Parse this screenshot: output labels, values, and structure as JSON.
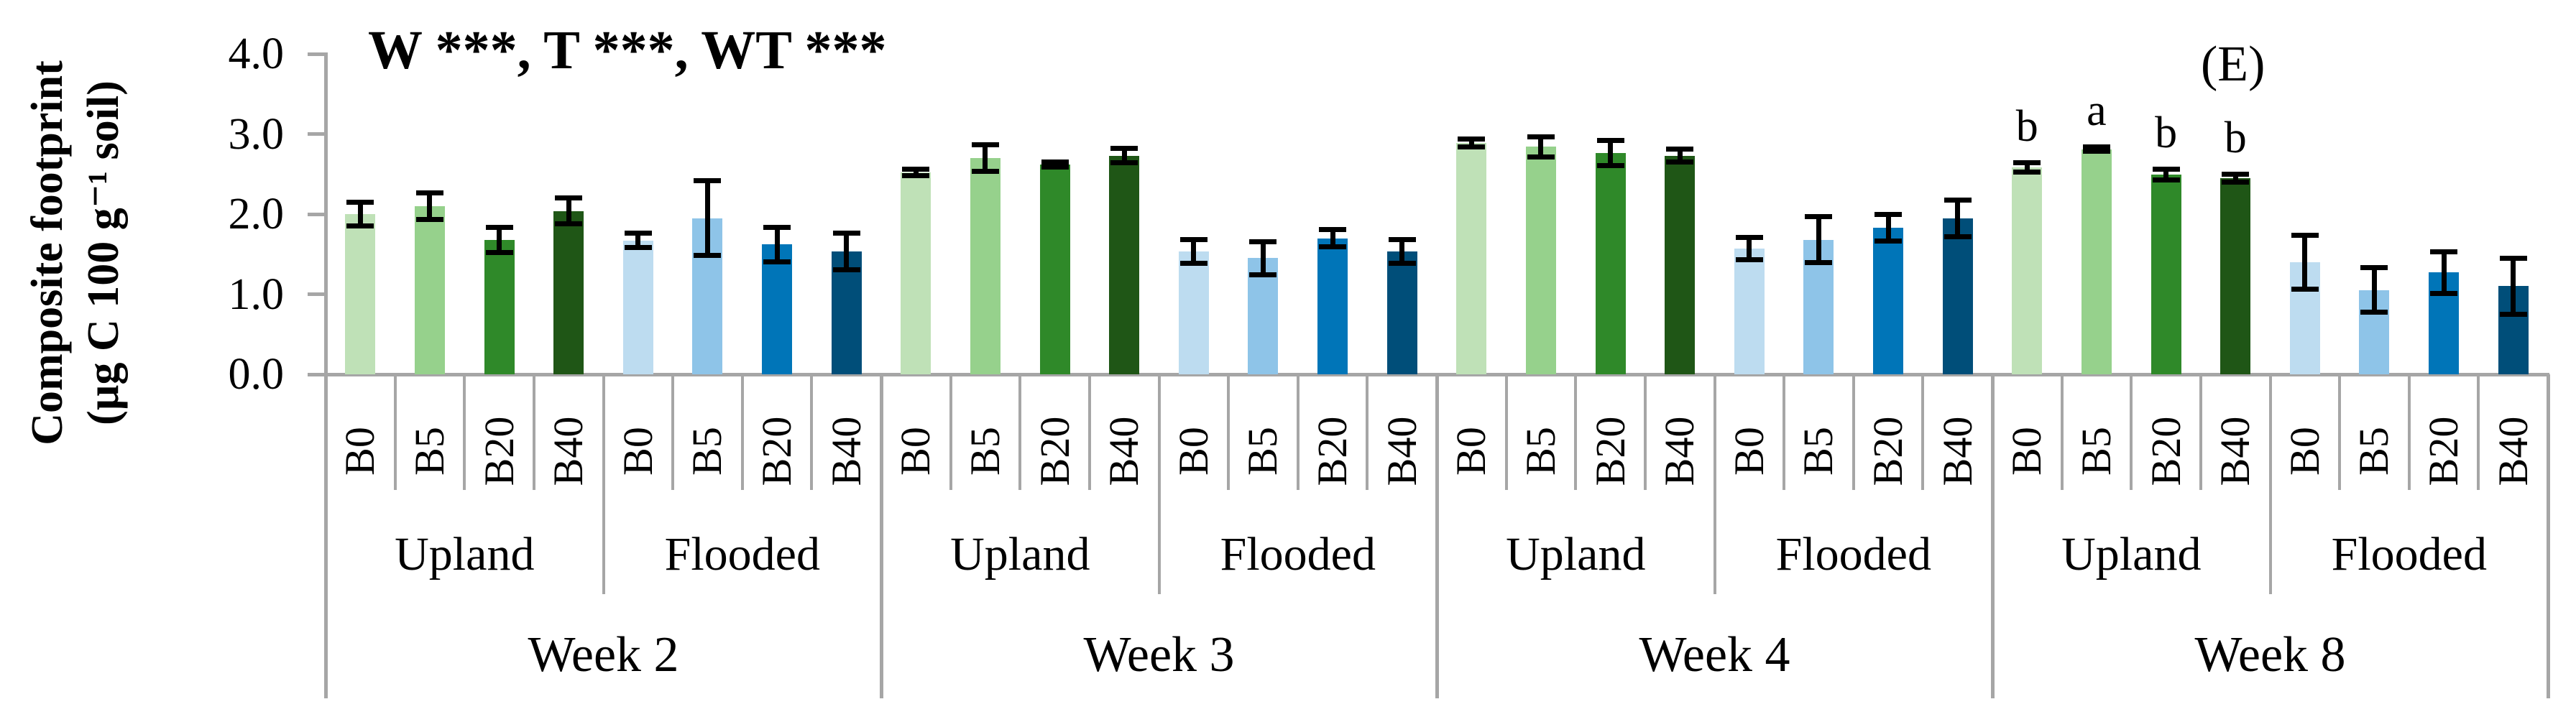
{
  "figure": {
    "title": "W ***, T ***, WT ***",
    "panel_label": "(E)",
    "y_axis_label_line1": "Composite footprint",
    "y_axis_label_line2": "(µg C 100 g⁻¹ soil)"
  },
  "chart_data": {
    "type": "bar",
    "title": "W ***, T ***, WT ***",
    "panel": "(E)",
    "ylabel": "Composite footprint (µg C 100 g⁻¹ soil)",
    "ylim": [
      0.0,
      4.0
    ],
    "yticks": [
      0.0,
      1.0,
      2.0,
      3.0,
      4.0
    ],
    "ytick_labels": [
      "0.0",
      "1.0",
      "2.0",
      "3.0",
      "4.0"
    ],
    "grid": false,
    "error_bars": true,
    "legend": "none",
    "treatments": [
      "B0",
      "B5",
      "B20",
      "B40"
    ],
    "water_regimes": [
      "Upland",
      "Flooded"
    ],
    "weeks": [
      "Week 2",
      "Week 3",
      "Week 4",
      "Week 8"
    ],
    "colors": {
      "Upland": [
        "#bfe1b7",
        "#96d18c",
        "#2f8929",
        "#1f5616"
      ],
      "Flooded": [
        "#bddcf0",
        "#8ec4e8",
        "#0075b8",
        "#004e79"
      ],
      "axis": "#a6a6a6",
      "error_bar": "#000000"
    },
    "series": [
      {
        "week": "Week 2",
        "water": "Upland",
        "values": [
          2.0,
          2.1,
          1.68,
          2.04
        ],
        "errors": [
          0.18,
          0.2,
          0.19,
          0.19
        ],
        "letters": [
          "",
          "",
          "",
          ""
        ]
      },
      {
        "week": "Week 2",
        "water": "Flooded",
        "values": [
          1.67,
          1.95,
          1.62,
          1.53
        ],
        "errors": [
          0.12,
          0.5,
          0.25,
          0.26
        ],
        "letters": [
          "",
          "",
          "",
          ""
        ]
      },
      {
        "week": "Week 3",
        "water": "Upland",
        "values": [
          2.52,
          2.7,
          2.62,
          2.73
        ],
        "errors": [
          0.07,
          0.2,
          0.06,
          0.12
        ],
        "letters": [
          "",
          "",
          "",
          ""
        ]
      },
      {
        "week": "Week 3",
        "water": "Flooded",
        "values": [
          1.53,
          1.45,
          1.7,
          1.53
        ],
        "errors": [
          0.18,
          0.24,
          0.14,
          0.18
        ],
        "letters": [
          "",
          "",
          "",
          ""
        ]
      },
      {
        "week": "Week 4",
        "water": "Upland",
        "values": [
          2.89,
          2.84,
          2.76,
          2.73
        ],
        "errors": [
          0.08,
          0.16,
          0.19,
          0.11
        ],
        "letters": [
          "",
          "",
          "",
          ""
        ]
      },
      {
        "week": "Week 4",
        "water": "Flooded",
        "values": [
          1.57,
          1.68,
          1.83,
          1.95
        ],
        "errors": [
          0.17,
          0.32,
          0.2,
          0.26
        ],
        "letters": [
          "",
          "",
          "",
          ""
        ]
      },
      {
        "week": "Week 8",
        "water": "Upland",
        "values": [
          2.58,
          2.81,
          2.49,
          2.45
        ],
        "errors": [
          0.09,
          0.06,
          0.1,
          0.08
        ],
        "letters": [
          "b",
          "a",
          "b",
          "b"
        ]
      },
      {
        "week": "Week 8",
        "water": "Flooded",
        "values": [
          1.4,
          1.05,
          1.27,
          1.1
        ],
        "errors": [
          0.37,
          0.31,
          0.29,
          0.38
        ],
        "letters": [
          "",
          "",
          "",
          ""
        ]
      }
    ]
  }
}
